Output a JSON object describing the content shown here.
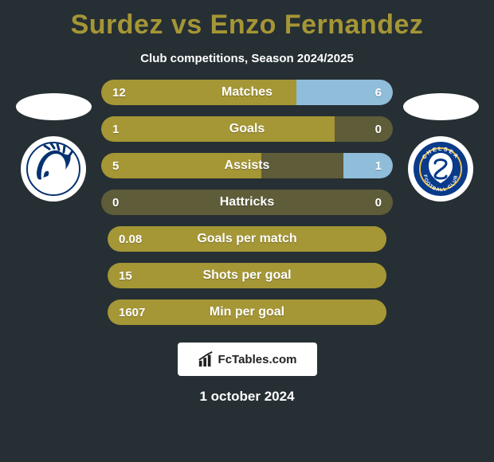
{
  "title": "Surdez vs Enzo Fernandez",
  "subtitle": "Club competitions, Season 2024/2025",
  "date": "1 october 2024",
  "colors": {
    "accent": "#a59636",
    "bar_left": "#a59636",
    "bar_right": "#8fbdda",
    "bar_track": "#5e5c39",
    "bg": "#262f33"
  },
  "player_left": {
    "badge_primary": "#06326f",
    "badge_name": "generic-indian-head"
  },
  "player_right": {
    "badge_primary": "#0a3a8a",
    "badge_name": "chelsea"
  },
  "stats": [
    {
      "label": "Matches",
      "left_val": "12",
      "right_val": "6",
      "left_pct": 67,
      "right_pct": 33
    },
    {
      "label": "Goals",
      "left_val": "1",
      "right_val": "0",
      "left_pct": 80,
      "right_pct": 0
    },
    {
      "label": "Assists",
      "left_val": "5",
      "right_val": "1",
      "left_pct": 55,
      "right_pct": 17
    },
    {
      "label": "Hattricks",
      "left_val": "0",
      "right_val": "0",
      "left_pct": 0,
      "right_pct": 0
    },
    {
      "label": "Goals per match",
      "left_val": "0.08",
      "right_val": "",
      "left_pct": 100,
      "right_pct": 0
    },
    {
      "label": "Shots per goal",
      "left_val": "15",
      "right_val": "",
      "left_pct": 100,
      "right_pct": 0
    },
    {
      "label": "Min per goal",
      "left_val": "1607",
      "right_val": "",
      "left_pct": 100,
      "right_pct": 0
    }
  ],
  "brand": "FcTables.com"
}
